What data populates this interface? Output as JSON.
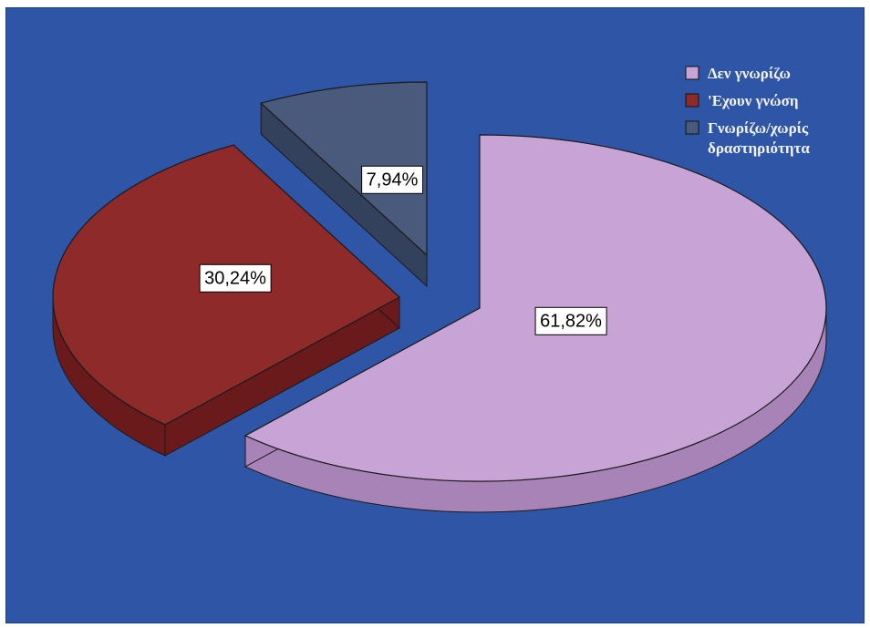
{
  "chart_data": {
    "type": "pie",
    "style": "3d-exploded",
    "categories": [
      "Δεν γνωρίζω",
      "'Εχουν γνώση",
      "Γνωρίζω/χωρίς δραστηριότητα"
    ],
    "values": [
      61.82,
      30.24,
      7.94
    ],
    "data_labels": [
      "61,82%",
      "30,24%",
      "7,94%"
    ],
    "colors": [
      "#c8a4d6",
      "#8e2a2a",
      "#4a5a7c"
    ],
    "side_colors": [
      "#a883b8",
      "#6a1a1a",
      "#34415c"
    ],
    "legend": {
      "placement": "top-right",
      "entries": [
        "Δεν γνωρίζω",
        "'Εχουν γνώση",
        "Γνωρίζω/χωρίς δραστηριότητα"
      ],
      "entry_lines": [
        [
          "Δεν γνωρίζω"
        ],
        [
          "'Εχουν γνώση"
        ],
        [
          "Γνωρίζω/χωρίς",
          "δραστηριότητα"
        ]
      ]
    },
    "background": "#2f56a6",
    "title": ""
  }
}
